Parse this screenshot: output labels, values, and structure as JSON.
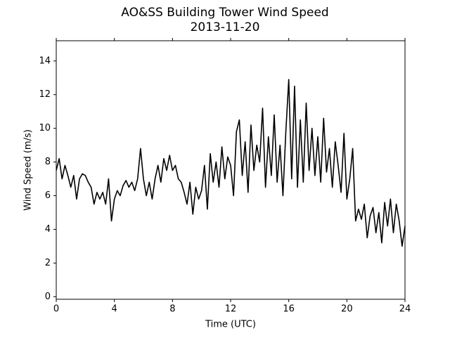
{
  "chart_data": {
    "type": "line",
    "title": "AO&SS Building Tower Wind Speed",
    "subtitle": "2013-11-20",
    "x_label": "Time (UTC)",
    "y_label": "Wind Speed (m/s)",
    "x": [
      0,
      0.2,
      0.4,
      0.6,
      0.8,
      1,
      1.2,
      1.4,
      1.6,
      1.8,
      2,
      2.2,
      2.4,
      2.6,
      2.8,
      3,
      3.2,
      3.4,
      3.6,
      3.8,
      4,
      4.2,
      4.4,
      4.6,
      4.8,
      5,
      5.2,
      5.4,
      5.6,
      5.8,
      6,
      6.2,
      6.4,
      6.6,
      6.8,
      7,
      7.2,
      7.4,
      7.6,
      7.8,
      8,
      8.2,
      8.4,
      8.6,
      8.8,
      9,
      9.2,
      9.4,
      9.6,
      9.8,
      10,
      10.2,
      10.4,
      10.6,
      10.8,
      11,
      11.2,
      11.4,
      11.6,
      11.8,
      12,
      12.2,
      12.4,
      12.6,
      12.8,
      13,
      13.2,
      13.4,
      13.6,
      13.8,
      14,
      14.2,
      14.4,
      14.6,
      14.8,
      15,
      15.2,
      15.4,
      15.6,
      15.8,
      16,
      16.2,
      16.4,
      16.6,
      16.8,
      17,
      17.2,
      17.4,
      17.6,
      17.8,
      18,
      18.2,
      18.4,
      18.6,
      18.8,
      19,
      19.2,
      19.4,
      19.6,
      19.8,
      20,
      20.2,
      20.4,
      20.6,
      20.8,
      21,
      21.2,
      21.4,
      21.6,
      21.8,
      22,
      22.2,
      22.4,
      22.6,
      22.8,
      23,
      23.2,
      23.4,
      23.6,
      23.8,
      24
    ],
    "series": [
      {
        "color": "#000000",
        "values": [
          7.5,
          8.2,
          7.0,
          7.8,
          7.2,
          6.5,
          7.2,
          5.8,
          7.0,
          7.3,
          7.2,
          6.8,
          6.5,
          5.5,
          6.2,
          5.8,
          6.2,
          5.5,
          7.0,
          4.5,
          5.8,
          6.3,
          6.0,
          6.6,
          6.9,
          6.5,
          6.8,
          6.3,
          7.0,
          8.8,
          7.0,
          6.0,
          6.8,
          5.8,
          7.0,
          7.8,
          6.8,
          8.2,
          7.5,
          8.4,
          7.5,
          7.8,
          7.0,
          6.8,
          6.2,
          5.5,
          6.8,
          4.9,
          6.5,
          5.8,
          6.3,
          7.8,
          5.2,
          8.5,
          6.8,
          8.0,
          6.5,
          8.9,
          7.0,
          8.3,
          7.8,
          6.0,
          9.8,
          10.5,
          7.2,
          9.2,
          6.2,
          10.2,
          7.5,
          9.0,
          8.0,
          11.2,
          6.5,
          9.5,
          7.2,
          10.8,
          6.8,
          9.0,
          6.0,
          9.8,
          12.9,
          7.0,
          12.5,
          6.5,
          10.5,
          6.8,
          11.5,
          7.5,
          10.0,
          7.2,
          9.5,
          6.8,
          10.6,
          7.4,
          8.8,
          6.5,
          9.2,
          7.8,
          6.2,
          9.7,
          5.8,
          7.0,
          8.8,
          4.5,
          5.2,
          4.6,
          5.5,
          3.5,
          4.8,
          5.3,
          3.8,
          5.0,
          3.2,
          5.6,
          4.2,
          5.8,
          3.8,
          5.5,
          4.5,
          3.0,
          4.2
        ]
      }
    ],
    "xlim": [
      0,
      24
    ],
    "xticks": [
      0,
      4,
      8,
      12,
      16,
      20,
      24
    ],
    "ylim": [
      -0.15,
      15.2
    ],
    "yticks": [
      0,
      2,
      4,
      6,
      8,
      10,
      12,
      14
    ]
  }
}
